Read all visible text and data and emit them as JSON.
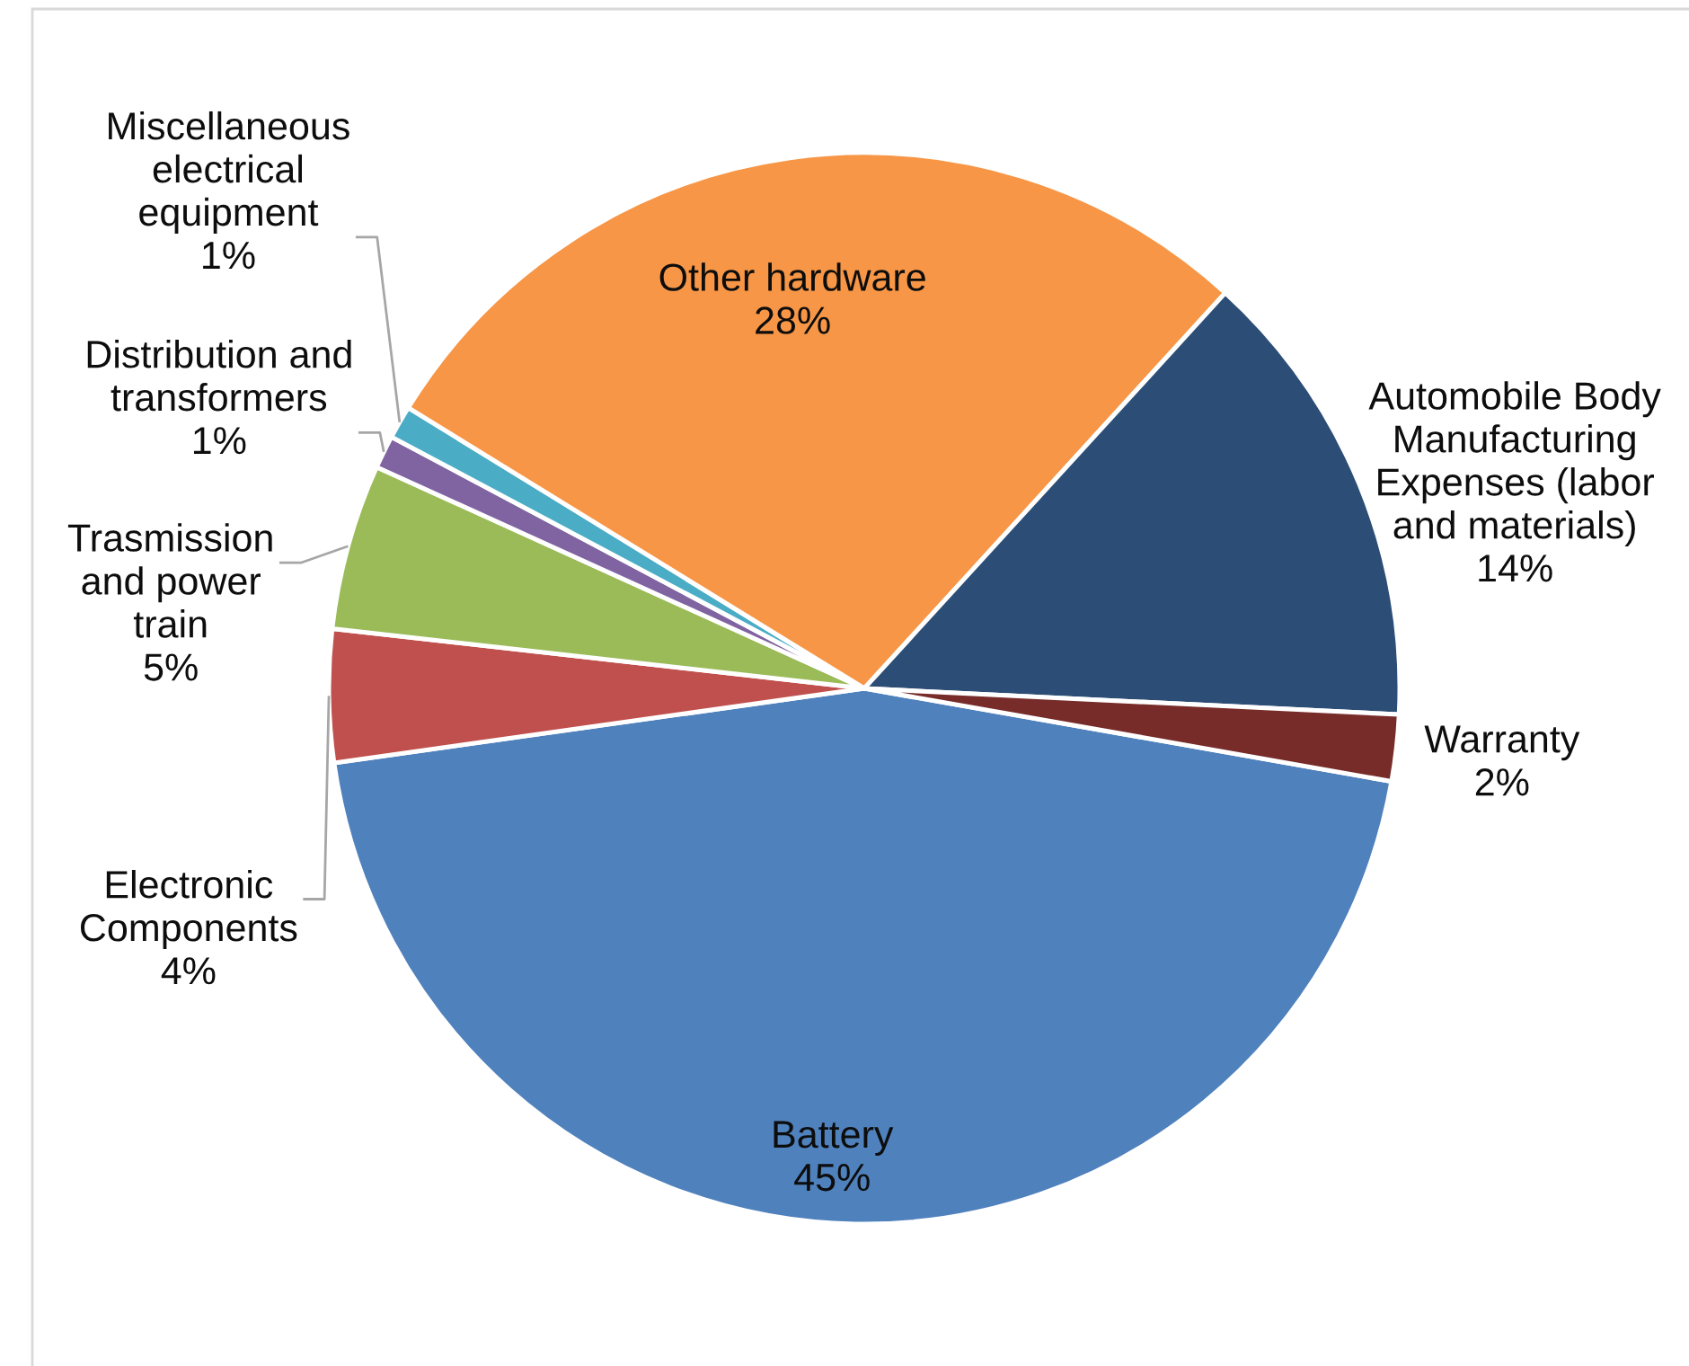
{
  "chart_data": {
    "type": "pie",
    "categories": [
      "Battery",
      "Electronic\nComponents",
      "Trasmission\nand power\ntrain",
      "Distribution and\ntransformers",
      "Miscellaneous\nelectrical\nequipment",
      "Other hardware",
      "Automobile Body\nManufacturing\nExpenses (labor\nand materials)",
      "Warranty"
    ],
    "values": [
      45,
      4,
      5,
      1,
      1,
      28,
      14,
      2
    ],
    "colors": [
      "#4f81bd",
      "#c0504d",
      "#9bbb59",
      "#8064a2",
      "#4bacc6",
      "#f79646",
      "#2c4d75",
      "#772c2a"
    ],
    "value_labels": [
      "45%",
      "4%",
      "5%",
      "1%",
      "1%",
      "28%",
      "14%",
      "2%"
    ]
  }
}
